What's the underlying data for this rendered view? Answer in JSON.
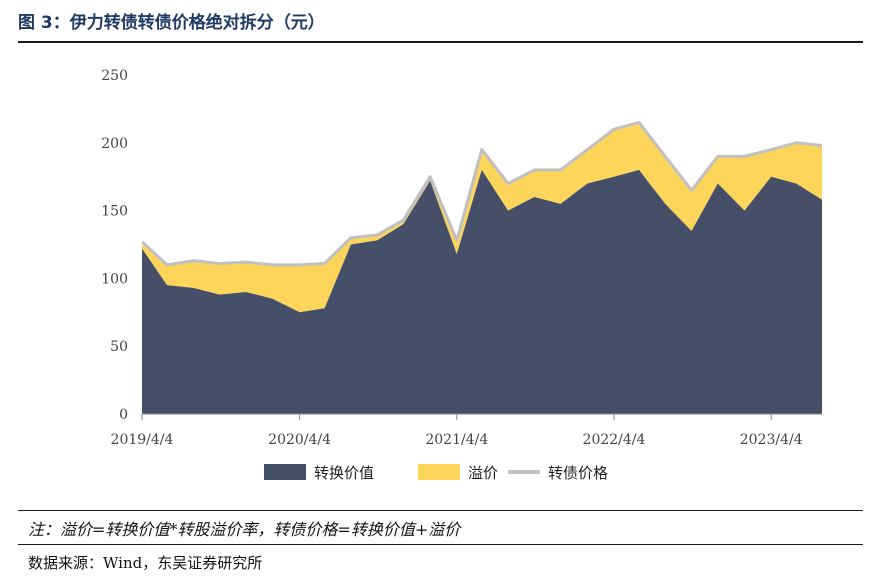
{
  "header": {
    "title": "图 3：伊力转债转债价格绝对拆分（元）"
  },
  "footer": {
    "note": "注：溢价=转换价值*转股溢价率，转债价格=转换价值+溢价",
    "source": "数据来源：Wind，东吴证券研究所"
  },
  "colors": {
    "conversion": "#455068",
    "premium": "#fcd55a",
    "price": "#c0c0c0"
  },
  "chart_data": {
    "type": "area",
    "title": "",
    "xlabel": "",
    "ylabel": "",
    "ylim": [
      0,
      250
    ],
    "yticks": [
      "0",
      "50",
      "100",
      "150",
      "200",
      "250"
    ],
    "xticks": [
      "2019/4/4",
      "2020/4/4",
      "2021/4/4",
      "2022/4/4",
      "2023/4/4"
    ],
    "grid": false,
    "legend": "bottom",
    "x": [
      "2019/4/4",
      "2019/6/1",
      "2019/8/1",
      "2019/10/1",
      "2019/12/1",
      "2020/2/1",
      "2020/4/4",
      "2020/6/1",
      "2020/8/1",
      "2020/10/1",
      "2020/12/1",
      "2021/2/1",
      "2021/4/4",
      "2021/6/1",
      "2021/8/1",
      "2021/10/1",
      "2021/12/1",
      "2022/2/1",
      "2022/4/4",
      "2022/6/1",
      "2022/8/1",
      "2022/10/1",
      "2022/12/1",
      "2023/2/1",
      "2023/4/4",
      "2023/6/1",
      "2023/7/31"
    ],
    "series": [
      {
        "name": "转换价值",
        "values": [
          122,
          95,
          93,
          88,
          90,
          85,
          75,
          78,
          125,
          128,
          140,
          172,
          118,
          180,
          150,
          160,
          155,
          170,
          175,
          180,
          155,
          135,
          170,
          150,
          175,
          170,
          158
        ]
      },
      {
        "name": "溢价",
        "values": [
          5,
          15,
          20,
          23,
          22,
          25,
          35,
          33,
          5,
          4,
          3,
          3,
          10,
          15,
          20,
          20,
          25,
          25,
          35,
          35,
          35,
          30,
          20,
          40,
          20,
          30,
          40
        ]
      },
      {
        "name": "转债价格",
        "values": [
          127,
          110,
          113,
          111,
          112,
          110,
          110,
          111,
          130,
          132,
          143,
          175,
          128,
          195,
          170,
          180,
          180,
          195,
          210,
          215,
          190,
          165,
          190,
          190,
          195,
          200,
          198
        ]
      }
    ]
  }
}
